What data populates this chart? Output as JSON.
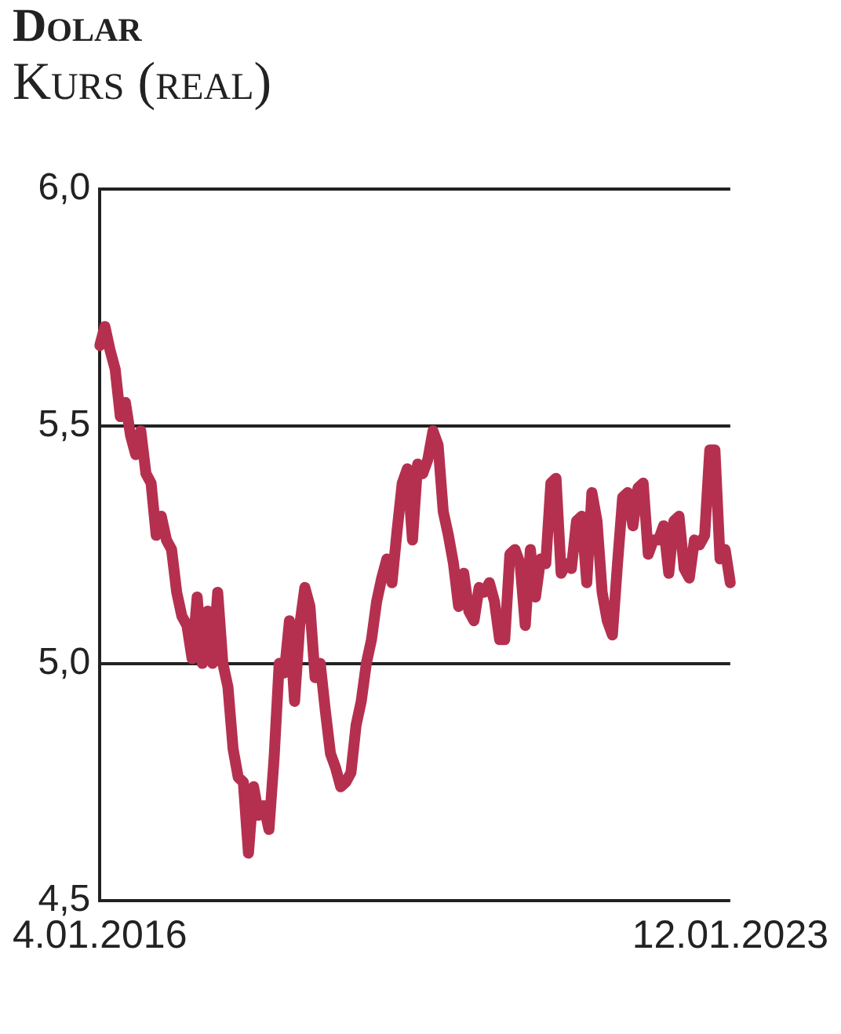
{
  "chart_data": {
    "type": "line",
    "title": "Dolar",
    "subtitle": "Kurs (real)",
    "categories": [
      "4.01.2016",
      null,
      null,
      null,
      null,
      null,
      null,
      null,
      null,
      null,
      null,
      null,
      null,
      null,
      null,
      null,
      null,
      null,
      null,
      null,
      null,
      null,
      null,
      null,
      null,
      null,
      null,
      null,
      null,
      null,
      null,
      null,
      null,
      null,
      null,
      null,
      null,
      null,
      null,
      null,
      null,
      null,
      null,
      null,
      null,
      null,
      null,
      null,
      null,
      null,
      null,
      null,
      null,
      null,
      null,
      null,
      null,
      null,
      null,
      null,
      null,
      null,
      null,
      null,
      null,
      null,
      null,
      null,
      null,
      null,
      null,
      null,
      null,
      null,
      null,
      null,
      null,
      null,
      null,
      null,
      null,
      null,
      null,
      null,
      null,
      null,
      null,
      null,
      null,
      null,
      null,
      null,
      null,
      null,
      null,
      null,
      null,
      null,
      null,
      null,
      null,
      null,
      null,
      null,
      null,
      null,
      null,
      null,
      null,
      null,
      null,
      null,
      null,
      null,
      null,
      null,
      null,
      null,
      null,
      null,
      null,
      null,
      null,
      "12.01.2023"
    ],
    "series": [
      {
        "color": "#b5304f",
        "values": [
          5.67,
          5.71,
          5.66,
          5.62,
          5.52,
          5.55,
          5.48,
          5.44,
          5.49,
          5.4,
          5.38,
          5.27,
          5.31,
          5.26,
          5.24,
          5.15,
          5.1,
          5.08,
          5.01,
          5.14,
          5.0,
          5.11,
          5.0,
          5.15,
          5.0,
          4.95,
          4.82,
          4.76,
          4.75,
          4.6,
          4.74,
          4.68,
          4.7,
          4.65,
          4.8,
          5.0,
          4.98,
          5.09,
          4.92,
          5.08,
          5.16,
          5.12,
          4.97,
          5.0,
          4.9,
          4.81,
          4.78,
          4.74,
          4.75,
          4.77,
          4.87,
          4.92,
          5.0,
          5.05,
          5.13,
          5.18,
          5.22,
          5.17,
          5.28,
          5.38,
          5.41,
          5.26,
          5.42,
          5.4,
          5.43,
          5.49,
          5.46,
          5.32,
          5.27,
          5.21,
          5.12,
          5.19,
          5.11,
          5.09,
          5.16,
          5.15,
          5.17,
          5.13,
          5.05,
          5.05,
          5.23,
          5.24,
          5.21,
          5.08,
          5.24,
          5.14,
          5.22,
          5.21,
          5.38,
          5.39,
          5.19,
          5.21,
          5.2,
          5.3,
          5.31,
          5.17,
          5.36,
          5.3,
          5.15,
          5.09,
          5.06,
          5.21,
          5.35,
          5.36,
          5.29,
          5.37,
          5.38,
          5.23,
          5.26,
          5.26,
          5.29,
          5.19,
          5.3,
          5.31,
          5.2,
          5.18,
          5.26,
          5.25,
          5.27,
          5.45,
          5.45,
          5.22,
          5.24,
          5.17
        ]
      }
    ],
    "ylim": [
      4.5,
      6.0
    ],
    "yticks": [
      {
        "value": 4.5,
        "label": "4,5"
      },
      {
        "value": 5.0,
        "label": "5,0"
      },
      {
        "value": 5.5,
        "label": "5,5"
      },
      {
        "value": 6.0,
        "label": "6,0"
      }
    ],
    "grid": "y"
  }
}
